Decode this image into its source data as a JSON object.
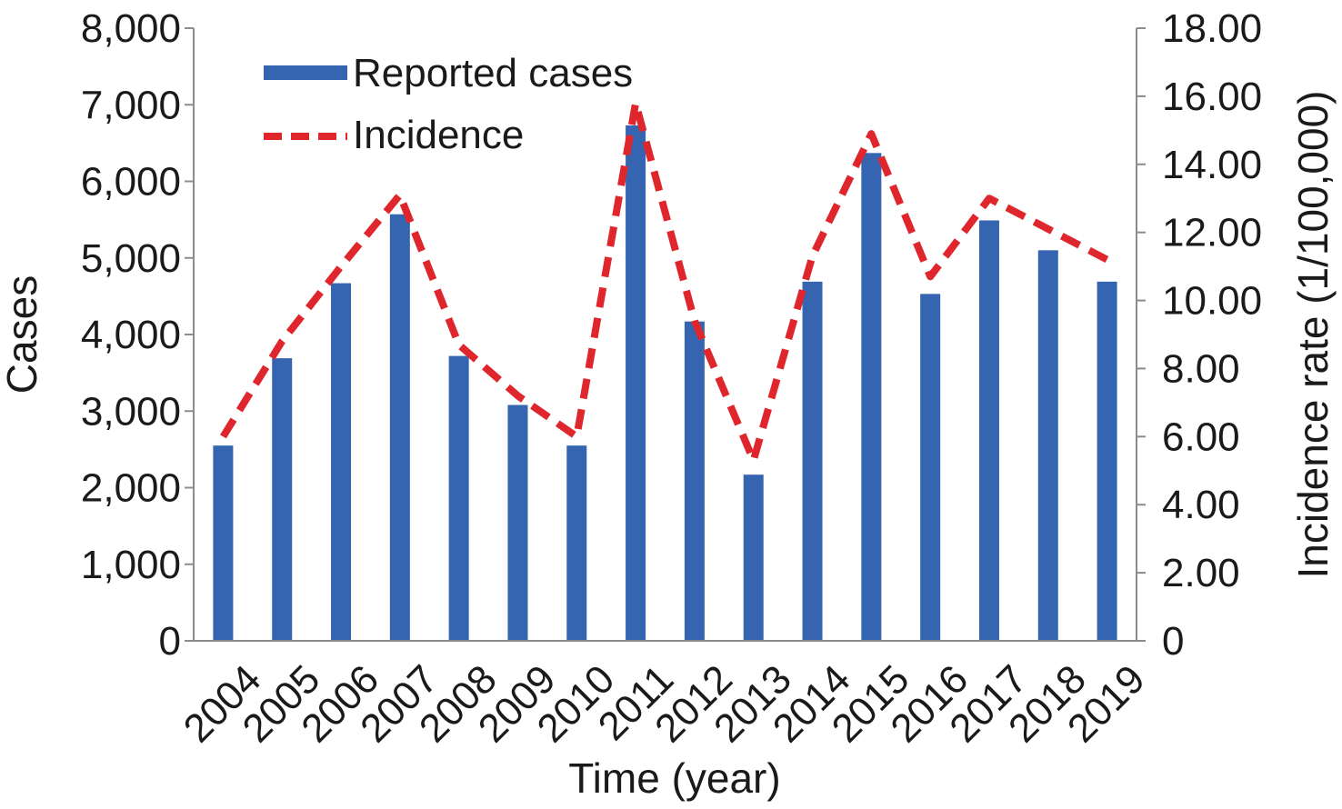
{
  "chart_data": {
    "type": "bar",
    "categories": [
      "2004",
      "2005",
      "2006",
      "2007",
      "2008",
      "2009",
      "2010",
      "2011",
      "2012",
      "2013",
      "2014",
      "2015",
      "2016",
      "2017",
      "2018",
      "2019"
    ],
    "series": [
      {
        "name": "Reported cases",
        "type": "bar",
        "axis": "left",
        "color": "#3565b0",
        "values": [
          2550,
          3690,
          4670,
          5570,
          3720,
          3080,
          2550,
          6730,
          4170,
          2170,
          4690,
          6370,
          4530,
          5490,
          5100,
          4690
        ]
      },
      {
        "name": "Incidence",
        "type": "line",
        "style": "dashed",
        "axis": "right",
        "color": "#e0262d",
        "values": [
          6.0,
          8.8,
          11.0,
          13.1,
          8.7,
          7.2,
          6.0,
          15.8,
          9.4,
          5.3,
          11.3,
          14.9,
          10.7,
          13.0,
          12.1,
          11.2
        ]
      }
    ],
    "xlabel": "Time (year)",
    "ylabel": "Cases",
    "ylabel_right": "Incidence rate (1/100,000)",
    "ylim": [
      0,
      8000
    ],
    "ylim_right": [
      0,
      18
    ],
    "yticks": [
      "0",
      "1,000",
      "2,000",
      "3,000",
      "4,000",
      "5,000",
      "6,000",
      "7,000",
      "8,000"
    ],
    "yticks_right": [
      "0",
      "2.00",
      "4.00",
      "6.00",
      "8.00",
      "10.00",
      "12.00",
      "14.00",
      "16.00",
      "18.00"
    ],
    "grid": false,
    "legend_position": "top-left"
  }
}
